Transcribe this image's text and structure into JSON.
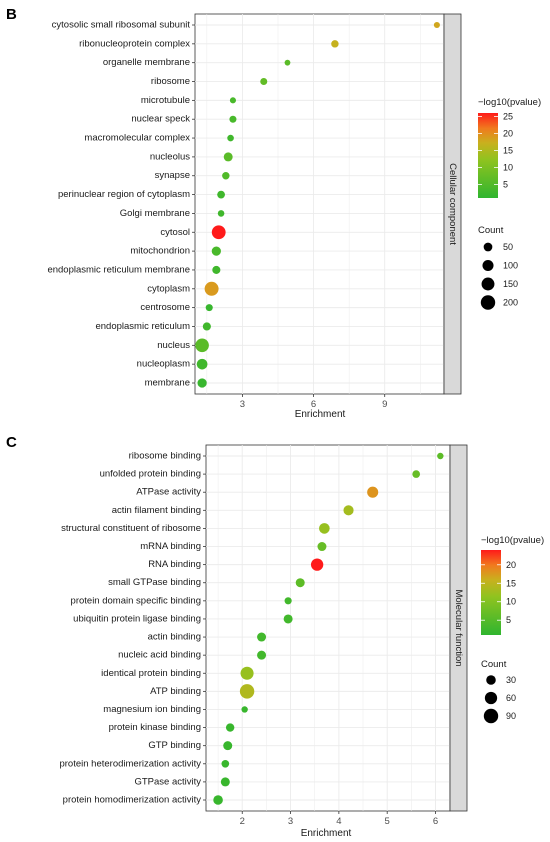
{
  "panels": [
    {
      "letter": "B",
      "facet_label": "Cellular component",
      "chart_data": {
        "type": "scatter",
        "xlabel": "Enrichment",
        "xlim": [
          1.0,
          11.5
        ],
        "xticks": [
          3,
          6,
          9
        ],
        "grid": true,
        "legend_position": "right",
        "categories": [
          "cytosolic small ribosomal subunit",
          "ribonucleoprotein complex",
          "organelle membrane",
          "ribosome",
          "microtubule",
          "nuclear speck",
          "macromolecular complex",
          "nucleolus",
          "synapse",
          "perinuclear region of cytoplasm",
          "Golgi membrane",
          "cytosol",
          "mitochondrion",
          "endoplasmic reticulum membrane",
          "cytoplasm",
          "centrosome",
          "endoplasmic reticulum",
          "nucleus",
          "nucleoplasm",
          "membrane"
        ],
        "enrichment": [
          11.2,
          6.9,
          4.9,
          3.9,
          2.6,
          2.6,
          2.5,
          2.4,
          2.3,
          2.1,
          2.1,
          2.0,
          1.9,
          1.9,
          1.7,
          1.6,
          1.5,
          1.3,
          1.3,
          1.3
        ],
        "count": [
          15,
          30,
          12,
          25,
          15,
          25,
          20,
          55,
          30,
          35,
          20,
          180,
          60,
          40,
          185,
          25,
          40,
          170,
          90,
          60
        ],
        "neg_log10_pvalue": [
          18,
          17,
          6,
          7,
          4,
          4,
          3,
          6,
          5,
          3,
          3,
          26,
          4,
          3,
          19,
          2,
          3,
          6,
          3,
          2
        ],
        "color_legend": {
          "title": "−log10(pvalue)",
          "ticks": [
            5,
            10,
            15,
            20,
            25
          ],
          "range": [
            1,
            26
          ]
        },
        "size_legend": {
          "title": "Count",
          "values": [
            50,
            100,
            150,
            200
          ]
        }
      }
    },
    {
      "letter": "C",
      "facet_label": "Molecular function",
      "chart_data": {
        "type": "scatter",
        "xlabel": "Enrichment",
        "xlim": [
          1.25,
          6.3
        ],
        "xticks": [
          2,
          3,
          4,
          5,
          6
        ],
        "grid": true,
        "legend_position": "right",
        "categories": [
          "ribosome binding",
          "unfolded protein binding",
          "ATPase activity",
          "actin filament binding",
          "structural constituent of ribosome",
          "mRNA binding",
          "RNA binding",
          "small GTPase binding",
          "protein domain specific binding",
          "ubiquitin protein ligase binding",
          "actin binding",
          "nucleic acid binding",
          "identical protein binding",
          "ATP binding",
          "magnesium ion binding",
          "protein kinase binding",
          "GTP binding",
          "protein heterodimerization activity",
          "GTPase activity",
          "protein homodimerization activity"
        ],
        "enrichment": [
          6.1,
          5.6,
          4.7,
          4.2,
          3.7,
          3.65,
          3.55,
          3.2,
          2.95,
          2.95,
          2.4,
          2.4,
          2.1,
          2.1,
          2.05,
          1.75,
          1.7,
          1.65,
          1.65,
          1.5
        ],
        "count": [
          8,
          15,
          45,
          35,
          40,
          25,
          60,
          25,
          12,
          25,
          25,
          25,
          70,
          90,
          8,
          20,
          25,
          15,
          25,
          30
        ],
        "neg_log10_pvalue": [
          6,
          7,
          18,
          13,
          12,
          7,
          24,
          6,
          3,
          3,
          3,
          3,
          12,
          14,
          2,
          2,
          2,
          2,
          2,
          2
        ],
        "color_legend": {
          "title": "−log10(pvalue)",
          "ticks": [
            5,
            10,
            15,
            20
          ],
          "range": [
            1,
            24
          ]
        },
        "size_legend": {
          "title": "Count",
          "values": [
            30,
            60,
            90
          ]
        }
      }
    }
  ]
}
